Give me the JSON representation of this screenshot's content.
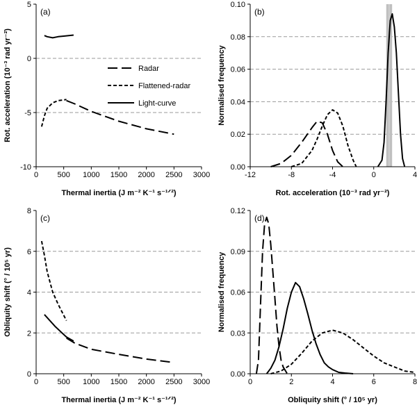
{
  "chart_data": [
    {
      "panel": "(a)",
      "type": "line",
      "xlabel": "Thermal inertia (J m⁻² K⁻¹ s⁻¹ᐟ²)",
      "ylabel": "Rot. acceleration (10⁻³ rad yr⁻²)",
      "xlim": [
        0,
        3000
      ],
      "ylim": [
        -10,
        5
      ],
      "xticks": [
        "0",
        "500",
        "1000",
        "1500",
        "2000",
        "2500",
        "3000"
      ],
      "yticks": [
        "-10",
        "-5",
        "0",
        "5"
      ],
      "grid": [
        -5,
        0
      ],
      "series": [
        {
          "name": "Radar",
          "style": "long-dash",
          "x": [
            550,
            700,
            1000,
            1500,
            2000,
            2500
          ],
          "y": [
            -3.9,
            -4.2,
            -4.9,
            -5.8,
            -6.5,
            -7.0
          ]
        },
        {
          "name": "Flattened-radar",
          "style": "short-dash",
          "x": [
            100,
            150,
            200,
            300,
            400,
            550
          ],
          "y": [
            -6.3,
            -5.3,
            -4.6,
            -4.1,
            -3.9,
            -3.8
          ]
        },
        {
          "name": "Light-curve",
          "style": "solid",
          "x": [
            150,
            200,
            300,
            400,
            500,
            680
          ],
          "y": [
            2.1,
            2.0,
            1.9,
            2.0,
            2.05,
            2.15
          ]
        }
      ],
      "legend": [
        "Radar",
        "Flattened-radar",
        "Light-curve"
      ]
    },
    {
      "panel": "(b)",
      "type": "line",
      "xlabel": "Rot. acceleration (10⁻³ rad yr⁻²)",
      "ylabel": "Normalised frequency",
      "xlim": [
        -12,
        4
      ],
      "ylim": [
        0,
        0.1
      ],
      "xticks": [
        "-12",
        "-8",
        "-4",
        "0",
        "4"
      ],
      "yticks": [
        "0.00",
        "0.02",
        "0.04",
        "0.06",
        "0.08",
        "0.10"
      ],
      "grid": [
        0.02,
        0.04,
        0.06,
        0.08
      ],
      "vbands": [
        1.35,
        1.65
      ],
      "series": [
        {
          "name": "Radar",
          "style": "long-dash",
          "x": [
            -10,
            -9,
            -8,
            -7,
            -6,
            -5.5,
            -5,
            -4.5,
            -4,
            -3.5,
            -3
          ],
          "y": [
            0.0,
            0.002,
            0.007,
            0.015,
            0.024,
            0.028,
            0.027,
            0.02,
            0.01,
            0.003,
            0.0
          ]
        },
        {
          "name": "Flattened-radar",
          "style": "short-dash",
          "x": [
            -8,
            -7,
            -6,
            -5.5,
            -5,
            -4.5,
            -4,
            -3.5,
            -3,
            -2.5,
            -2,
            -1.7
          ],
          "y": [
            0.0,
            0.002,
            0.01,
            0.017,
            0.025,
            0.032,
            0.035,
            0.033,
            0.025,
            0.013,
            0.004,
            0.0
          ]
        },
        {
          "name": "Light-curve",
          "style": "solid",
          "x": [
            0.4,
            0.8,
            1.0,
            1.2,
            1.4,
            1.6,
            1.8,
            2.0,
            2.2,
            2.4,
            2.6,
            2.8,
            3.0
          ],
          "y": [
            0.0,
            0.004,
            0.015,
            0.04,
            0.07,
            0.09,
            0.094,
            0.086,
            0.07,
            0.045,
            0.02,
            0.005,
            0.0
          ]
        }
      ]
    },
    {
      "panel": "(c)",
      "type": "line",
      "xlabel": "Thermal inertia (J m⁻² K⁻¹ s⁻¹ᐟ²)",
      "ylabel": "Obliquity shift (° / 10⁵ yr)",
      "xlim": [
        0,
        3000
      ],
      "ylim": [
        0,
        8
      ],
      "xticks": [
        "0",
        "500",
        "1000",
        "1500",
        "2000",
        "2500",
        "3000"
      ],
      "yticks": [
        "0",
        "2",
        "4",
        "6",
        "8"
      ],
      "grid": [
        2,
        4,
        6
      ],
      "series": [
        {
          "name": "Radar",
          "style": "long-dash",
          "x": [
            550,
            700,
            1000,
            1500,
            2000,
            2500
          ],
          "y": [
            1.75,
            1.5,
            1.2,
            0.95,
            0.72,
            0.55
          ]
        },
        {
          "name": "Flattened-radar",
          "style": "short-dash",
          "x": [
            100,
            150,
            200,
            300,
            400,
            550
          ],
          "y": [
            6.5,
            5.8,
            5.0,
            4.0,
            3.4,
            2.6
          ]
        },
        {
          "name": "Light-curve",
          "style": "solid",
          "x": [
            150,
            250,
            350,
            450,
            550,
            680
          ],
          "y": [
            2.9,
            2.6,
            2.3,
            2.05,
            1.8,
            1.6
          ]
        }
      ]
    },
    {
      "panel": "(d)",
      "type": "line",
      "xlabel": "Obliquity shift (° / 10⁵ yr)",
      "ylabel": "Normalised frequency",
      "xlim": [
        0,
        8
      ],
      "ylim": [
        0,
        0.12
      ],
      "xticks": [
        "0",
        "2",
        "4",
        "6",
        "8"
      ],
      "yticks": [
        "0.00",
        "0.03",
        "0.06",
        "0.09",
        "0.12"
      ],
      "grid": [
        0.03,
        0.06,
        0.09
      ],
      "series": [
        {
          "name": "Radar",
          "style": "long-dash",
          "x": [
            0.3,
            0.4,
            0.5,
            0.6,
            0.7,
            0.8,
            0.9,
            1.0,
            1.1,
            1.2,
            1.3,
            1.4,
            1.5,
            1.6,
            1.8
          ],
          "y": [
            0.0,
            0.01,
            0.05,
            0.09,
            0.11,
            0.115,
            0.11,
            0.095,
            0.075,
            0.055,
            0.035,
            0.02,
            0.01,
            0.005,
            0.0
          ]
        },
        {
          "name": "Light-curve",
          "style": "solid",
          "x": [
            0.8,
            1.0,
            1.2,
            1.4,
            1.6,
            1.8,
            2.0,
            2.2,
            2.4,
            2.6,
            2.8,
            3.0,
            3.2,
            3.4,
            3.6,
            3.8,
            4.0,
            4.3,
            4.6,
            5.0
          ],
          "y": [
            0.0,
            0.004,
            0.01,
            0.02,
            0.033,
            0.048,
            0.06,
            0.067,
            0.064,
            0.055,
            0.044,
            0.032,
            0.022,
            0.014,
            0.008,
            0.005,
            0.003,
            0.001,
            0.0005,
            0.0
          ]
        },
        {
          "name": "Flattened-radar",
          "style": "short-dash",
          "x": [
            1.0,
            1.5,
            2.0,
            2.5,
            3.0,
            3.5,
            4.0,
            4.5,
            5.0,
            5.5,
            6.0,
            6.5,
            7.0,
            7.5,
            8.0
          ],
          "y": [
            0.0,
            0.002,
            0.007,
            0.015,
            0.024,
            0.03,
            0.032,
            0.03,
            0.025,
            0.019,
            0.013,
            0.008,
            0.005,
            0.002,
            0.001
          ]
        }
      ]
    }
  ]
}
